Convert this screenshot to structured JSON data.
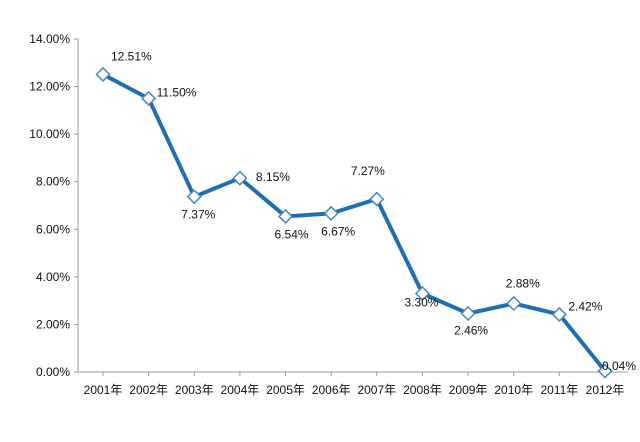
{
  "chart_data": {
    "type": "line",
    "title": "",
    "xlabel": "",
    "ylabel": "",
    "categories": [
      "2001年",
      "2002年",
      "2003年",
      "2004年",
      "2005年",
      "2006年",
      "2007年",
      "2008年",
      "2009年",
      "2010年",
      "2011年",
      "2012年"
    ],
    "series": [
      {
        "values": [
          12.51,
          11.5,
          7.37,
          8.15,
          6.54,
          6.67,
          7.27,
          3.3,
          2.46,
          2.88,
          2.42,
          0.04
        ],
        "labels": [
          "12.51%",
          "11.50%",
          "7.37%",
          "8.15%",
          "6.54%",
          "6.67%",
          "7.27%",
          "3.30%",
          "2.46%",
          "2.88%",
          "2.42%",
          "0.04%"
        ],
        "color": "#1f6fb2",
        "marker": "diamond"
      }
    ],
    "ylim": [
      0,
      14
    ],
    "yticks": [
      "0.00%",
      "2.00%",
      "4.00%",
      "6.00%",
      "8.00%",
      "10.00%",
      "12.00%",
      "14.00%"
    ],
    "grid": false,
    "legend": "none"
  }
}
